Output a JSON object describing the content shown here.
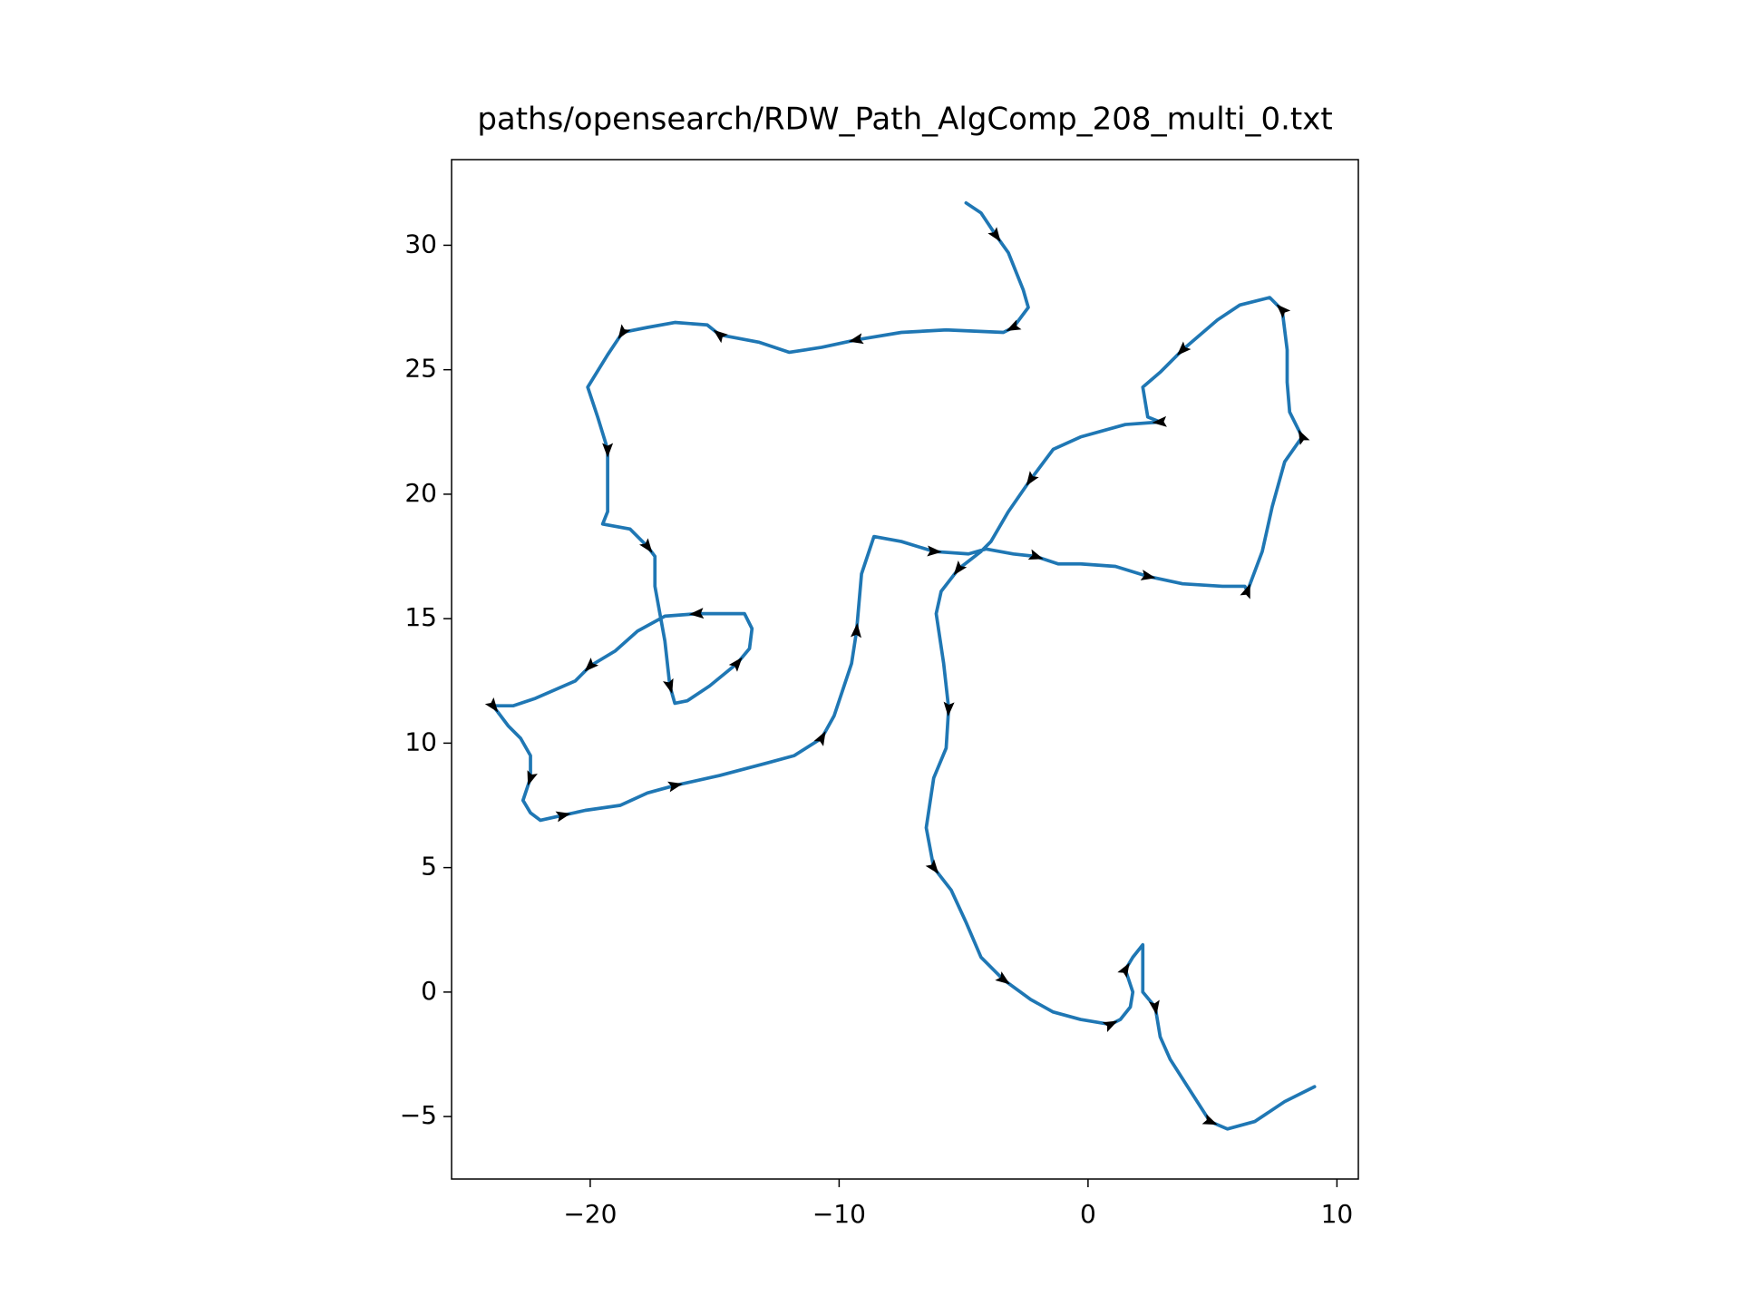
{
  "chart_data": {
    "type": "line",
    "title": "paths/opensearch/RDW_Path_AlgComp_208_multi_0.txt",
    "xlim": [
      -25.57,
      10.86
    ],
    "ylim": [
      -7.51,
      33.44
    ],
    "xticks": [
      {
        "value": -20,
        "label": "−20"
      },
      {
        "value": -10,
        "label": "−10"
      },
      0,
      10
    ],
    "yticks": [
      {
        "value": -5,
        "label": "−5"
      },
      0,
      5,
      10,
      15,
      20,
      25,
      30
    ],
    "arrows": true,
    "series": [
      {
        "color": "#1f77b4",
        "x": [
          -4.9,
          -4.3,
          -3.7,
          -3.2,
          -2.6,
          -2.4,
          -3.0,
          -3.4,
          -5.7,
          -7.5,
          -9.3,
          -10.7,
          -12.0,
          -13.2,
          -14.8,
          -15.3,
          -16.6,
          -17.7,
          -18.7,
          -19.3,
          -20.1,
          -19.7,
          -19.3,
          -19.3,
          -19.5,
          -18.4,
          -17.7,
          -17.4,
          -17.4,
          -17.0,
          -16.8,
          -16.6,
          -16.1,
          -15.2,
          -14.1,
          -13.6,
          -13.5,
          -13.8,
          -15.7,
          -17.0,
          -18.1,
          -19.0,
          -20.0,
          -20.6,
          -22.2,
          -23.1,
          -23.9,
          -23.3,
          -22.8,
          -22.4,
          -22.4,
          -22.7,
          -22.4,
          -22.0,
          -21.1,
          -20.2,
          -18.8,
          -17.7,
          -16.6,
          -14.8,
          -12.9,
          -11.8,
          -10.7,
          -10.2,
          -9.8,
          -9.5,
          -9.3,
          -9.1,
          -8.6,
          -7.5,
          -6.2,
          -4.8,
          -4.1,
          -3.0,
          -2.1,
          -1.2,
          -0.3,
          1.1,
          2.4,
          3.8,
          5.4,
          6.3,
          6.4,
          7.0,
          7.4,
          7.9,
          8.6,
          8.1,
          8.0,
          8.0,
          7.8,
          7.3,
          6.1,
          5.2,
          3.8,
          2.9,
          2.2,
          2.4,
          2.9,
          1.5,
          -0.3,
          -1.4,
          -2.3,
          -3.2,
          -3.9,
          -4.3,
          -5.2,
          -5.9,
          -6.1,
          -5.8,
          -5.6,
          -5.7,
          -6.2,
          -6.5,
          -6.2,
          -5.5,
          -4.9,
          -4.3,
          -3.4,
          -2.3,
          -1.4,
          -0.3,
          0.9,
          1.3,
          1.7,
          1.8,
          1.5,
          1.8,
          2.2,
          2.2,
          2.7,
          2.9,
          3.3,
          4.0,
          4.9,
          5.6,
          6.7,
          7.9,
          9.1
        ],
        "values": [
          31.7,
          31.3,
          30.4,
          29.7,
          28.2,
          27.5,
          26.7,
          26.5,
          26.6,
          26.5,
          26.2,
          25.9,
          25.7,
          26.1,
          26.4,
          26.8,
          26.9,
          26.7,
          26.5,
          25.6,
          24.3,
          23.1,
          21.8,
          19.3,
          18.8,
          18.6,
          17.9,
          17.5,
          16.3,
          14.1,
          12.3,
          11.6,
          11.7,
          12.3,
          13.2,
          13.8,
          14.6,
          15.2,
          15.2,
          15.1,
          14.5,
          13.7,
          13.1,
          12.5,
          11.8,
          11.5,
          11.5,
          10.7,
          10.2,
          9.5,
          8.6,
          7.7,
          7.2,
          6.9,
          7.1,
          7.3,
          7.5,
          8.0,
          8.3,
          8.7,
          9.2,
          9.5,
          10.2,
          11.1,
          12.3,
          13.2,
          14.5,
          16.8,
          18.3,
          18.1,
          17.7,
          17.6,
          17.8,
          17.6,
          17.5,
          17.2,
          17.2,
          17.1,
          16.7,
          16.4,
          16.3,
          16.3,
          16.1,
          17.7,
          19.5,
          21.3,
          22.3,
          23.3,
          24.5,
          25.8,
          27.4,
          27.9,
          27.6,
          27.0,
          25.8,
          24.9,
          24.3,
          23.1,
          22.9,
          22.8,
          22.3,
          21.8,
          20.6,
          19.3,
          18.1,
          17.7,
          17.0,
          16.1,
          15.2,
          13.2,
          11.4,
          9.8,
          8.6,
          6.6,
          5.0,
          4.1,
          2.8,
          1.4,
          0.5,
          -0.3,
          -0.8,
          -1.1,
          -1.3,
          -1.1,
          -0.6,
          0.0,
          0.9,
          1.4,
          1.9,
          0.0,
          -0.6,
          -1.8,
          -2.7,
          -3.8,
          -5.2,
          -5.5,
          -5.2,
          -4.4,
          -3.8
        ]
      }
    ]
  }
}
